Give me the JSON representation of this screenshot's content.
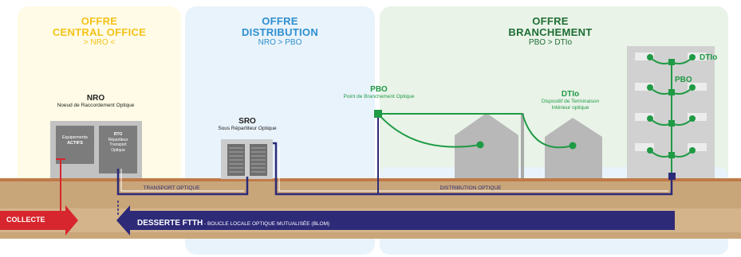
{
  "colors": {
    "yellow": "#f4c21a",
    "blue": "#2e8fcf",
    "green": "#1f9a45",
    "navy": "#2d2a78",
    "red": "#d7262d",
    "earth": "#c9a67a",
    "grey": "#b5b5b5"
  },
  "sections": {
    "central": {
      "title_1": "OFFRE",
      "title_2": "CENTRAL OFFICE",
      "subtitle": "> NRO <"
    },
    "distribution": {
      "title_1": "OFFRE",
      "title_2": "DISTRIBUTION",
      "subtitle": "NRO > PBO"
    },
    "branchement": {
      "title_1": "OFFRE",
      "title_2": "BRANCHEMENT",
      "subtitle": "PBO > DTIo"
    }
  },
  "nodes": {
    "nro": {
      "label": "NRO",
      "desc": "Noeud de Raccordement Optique"
    },
    "equip": {
      "line1": "Equipements",
      "line2": "ACTIFS"
    },
    "rts": {
      "line1": "RTO",
      "line2": "Répartiteur",
      "line3": "Transport",
      "line4": "Optique"
    },
    "sro": {
      "label": "SRO",
      "desc": "Sous Répartiteur Optique"
    },
    "pbo": {
      "label": "PBO",
      "desc": "Point de Branchement Optique"
    },
    "dtio": {
      "label": "DTIo",
      "desc1": "Dispositif de Terminaison",
      "desc2": "Intérieur optique"
    },
    "building_dtio": {
      "label": "DTIo"
    },
    "building_pbo": {
      "label": "PBO"
    }
  },
  "links": {
    "transport": "TRANSPORT OPTIQUE",
    "distribution": "DISTRIBUTION OPTIQUE"
  },
  "arrows": {
    "collecte": "COLLECTE",
    "desserte_bold": "DESSERTE FTTH",
    "desserte_rest": " - BOUCLE LOCALE OPTIQUE MUTUALISÉE (BLOM)"
  }
}
